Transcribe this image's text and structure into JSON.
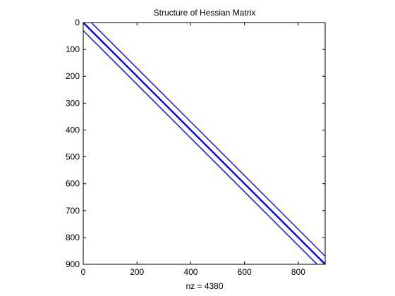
{
  "chart_data": {
    "type": "scatter",
    "plot_kind": "sparsity-pattern",
    "title": "Structure of Hessian Matrix",
    "xlabel": "nz = 4380",
    "ylabel": "",
    "xlim": [
      0,
      900
    ],
    "ylim": [
      0,
      900
    ],
    "y_reversed": true,
    "x_ticks": [
      0,
      200,
      400,
      600,
      800
    ],
    "y_ticks": [
      0,
      100,
      200,
      300,
      400,
      500,
      600,
      700,
      800,
      900
    ],
    "x_tick_labels": [
      "0",
      "200",
      "400",
      "600",
      "800"
    ],
    "y_tick_labels": [
      "0",
      "100",
      "200",
      "300",
      "400",
      "500",
      "600",
      "700",
      "800",
      "900"
    ],
    "grid": false,
    "legend": "none",
    "marker_color": "#0000ff",
    "matrix_size": 900,
    "series": [
      {
        "values": {
          "x_start": 31,
          "y_start": 1,
          "x_end": 900,
          "y_end": 870
        }
      },
      {
        "values": {
          "x_start": 1,
          "y_start": 1,
          "x_end": 900,
          "y_end": 900
        }
      },
      {
        "values": {
          "x_start": 1,
          "y_start": 31,
          "x_end": 870,
          "y_end": 900
        }
      }
    ]
  }
}
